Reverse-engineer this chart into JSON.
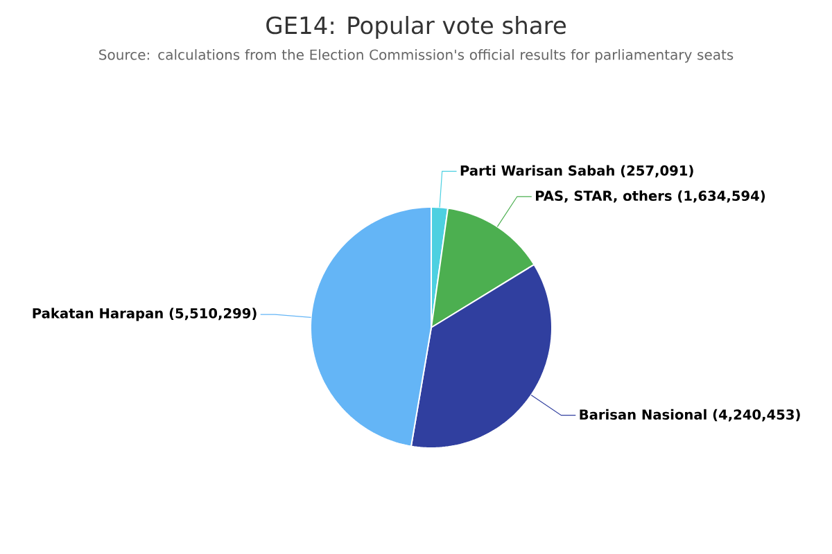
{
  "chart_data": {
    "type": "pie",
    "title": "GE14: Popular vote share",
    "subtitle": "Source: calculations from the Election Commission's official results for parliamentary seats",
    "categories": [
      "Parti Warisan Sabah",
      "PAS, STAR, others",
      "Barisan Nasional",
      "Pakatan Harapan"
    ],
    "values": [
      257091,
      1634594,
      4240453,
      5510299
    ],
    "value_labels": [
      "(257,091)",
      "(1,634,594)",
      "(4,240,453)",
      "(5,510,299)"
    ],
    "colors": [
      "#4dd0e1",
      "#4caf50",
      "#303f9f",
      "#64b5f6"
    ]
  }
}
